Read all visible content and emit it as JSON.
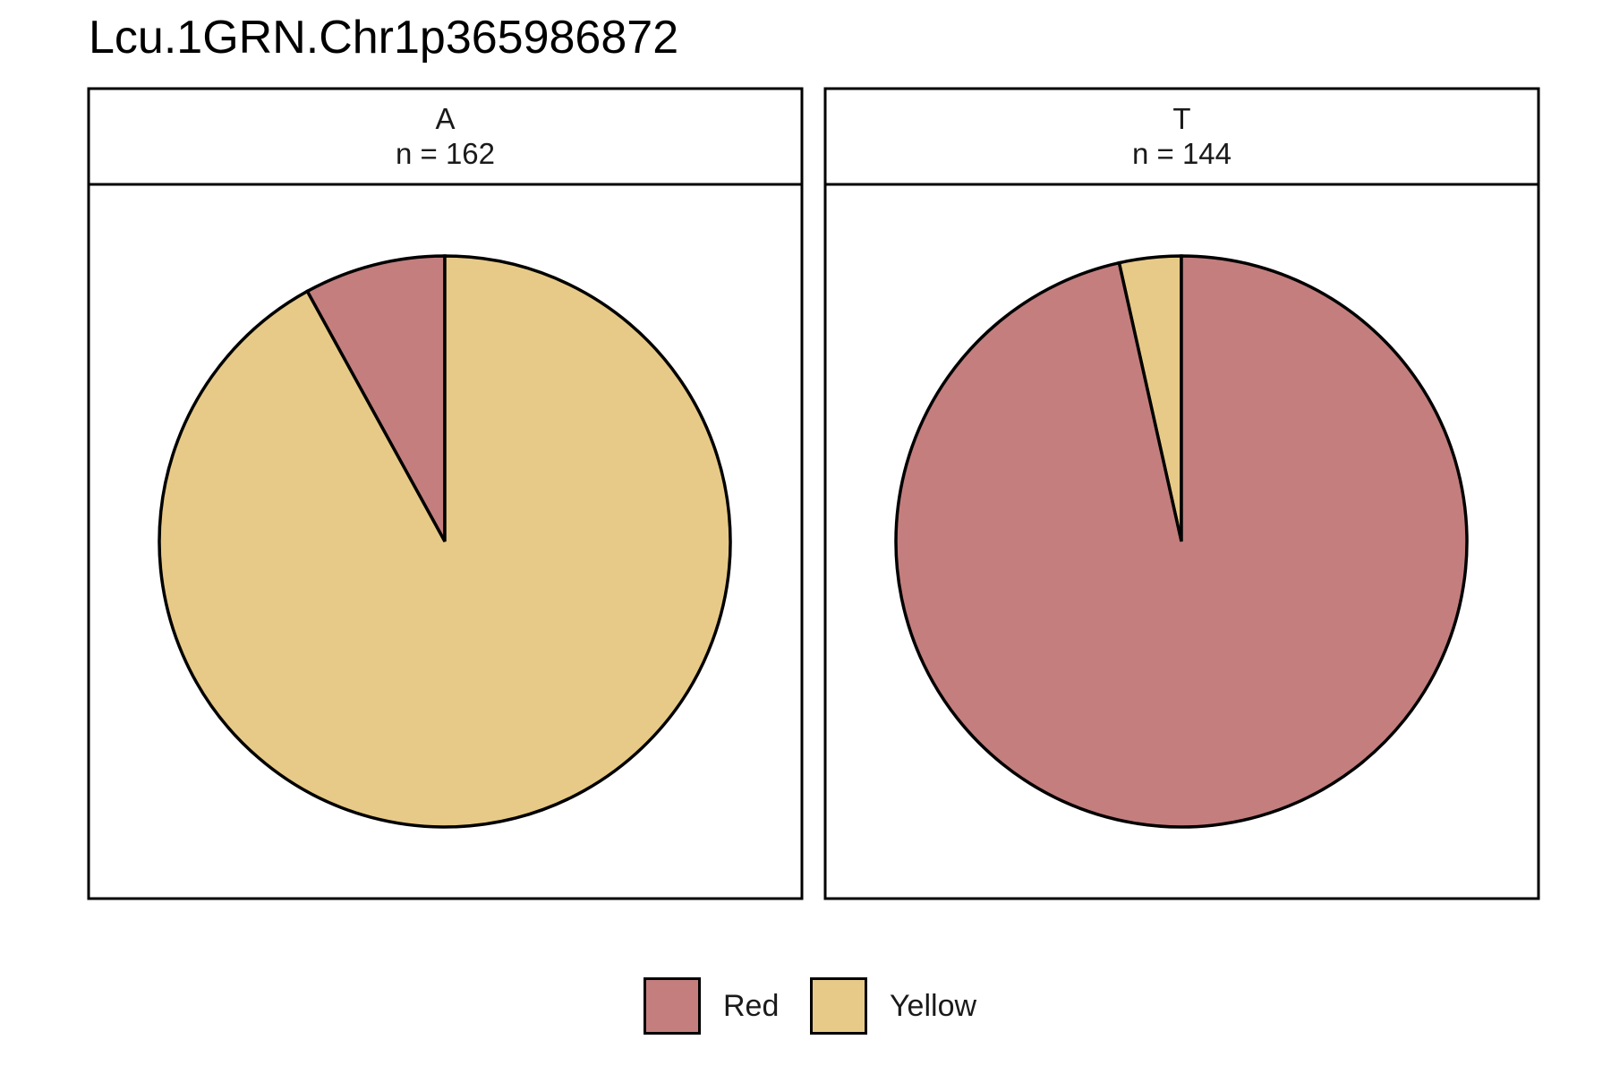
{
  "chart_data": {
    "type": "pie",
    "title": "Lcu.1GRN.Chr1p365986872",
    "colors": {
      "Red": "#c47e7e",
      "Yellow": "#e7ca87"
    },
    "facets": [
      {
        "name": "A",
        "n_label": "n = 162",
        "n": 162,
        "slices": [
          {
            "label": "Red",
            "value": 0.08
          },
          {
            "label": "Yellow",
            "value": 0.92
          }
        ]
      },
      {
        "name": "T",
        "n_label": "n = 144",
        "n": 144,
        "slices": [
          {
            "label": "Yellow",
            "value": 0.035
          },
          {
            "label": "Red",
            "value": 0.965
          }
        ]
      }
    ],
    "legend": {
      "position": "bottom",
      "entries": [
        "Red",
        "Yellow"
      ]
    }
  }
}
